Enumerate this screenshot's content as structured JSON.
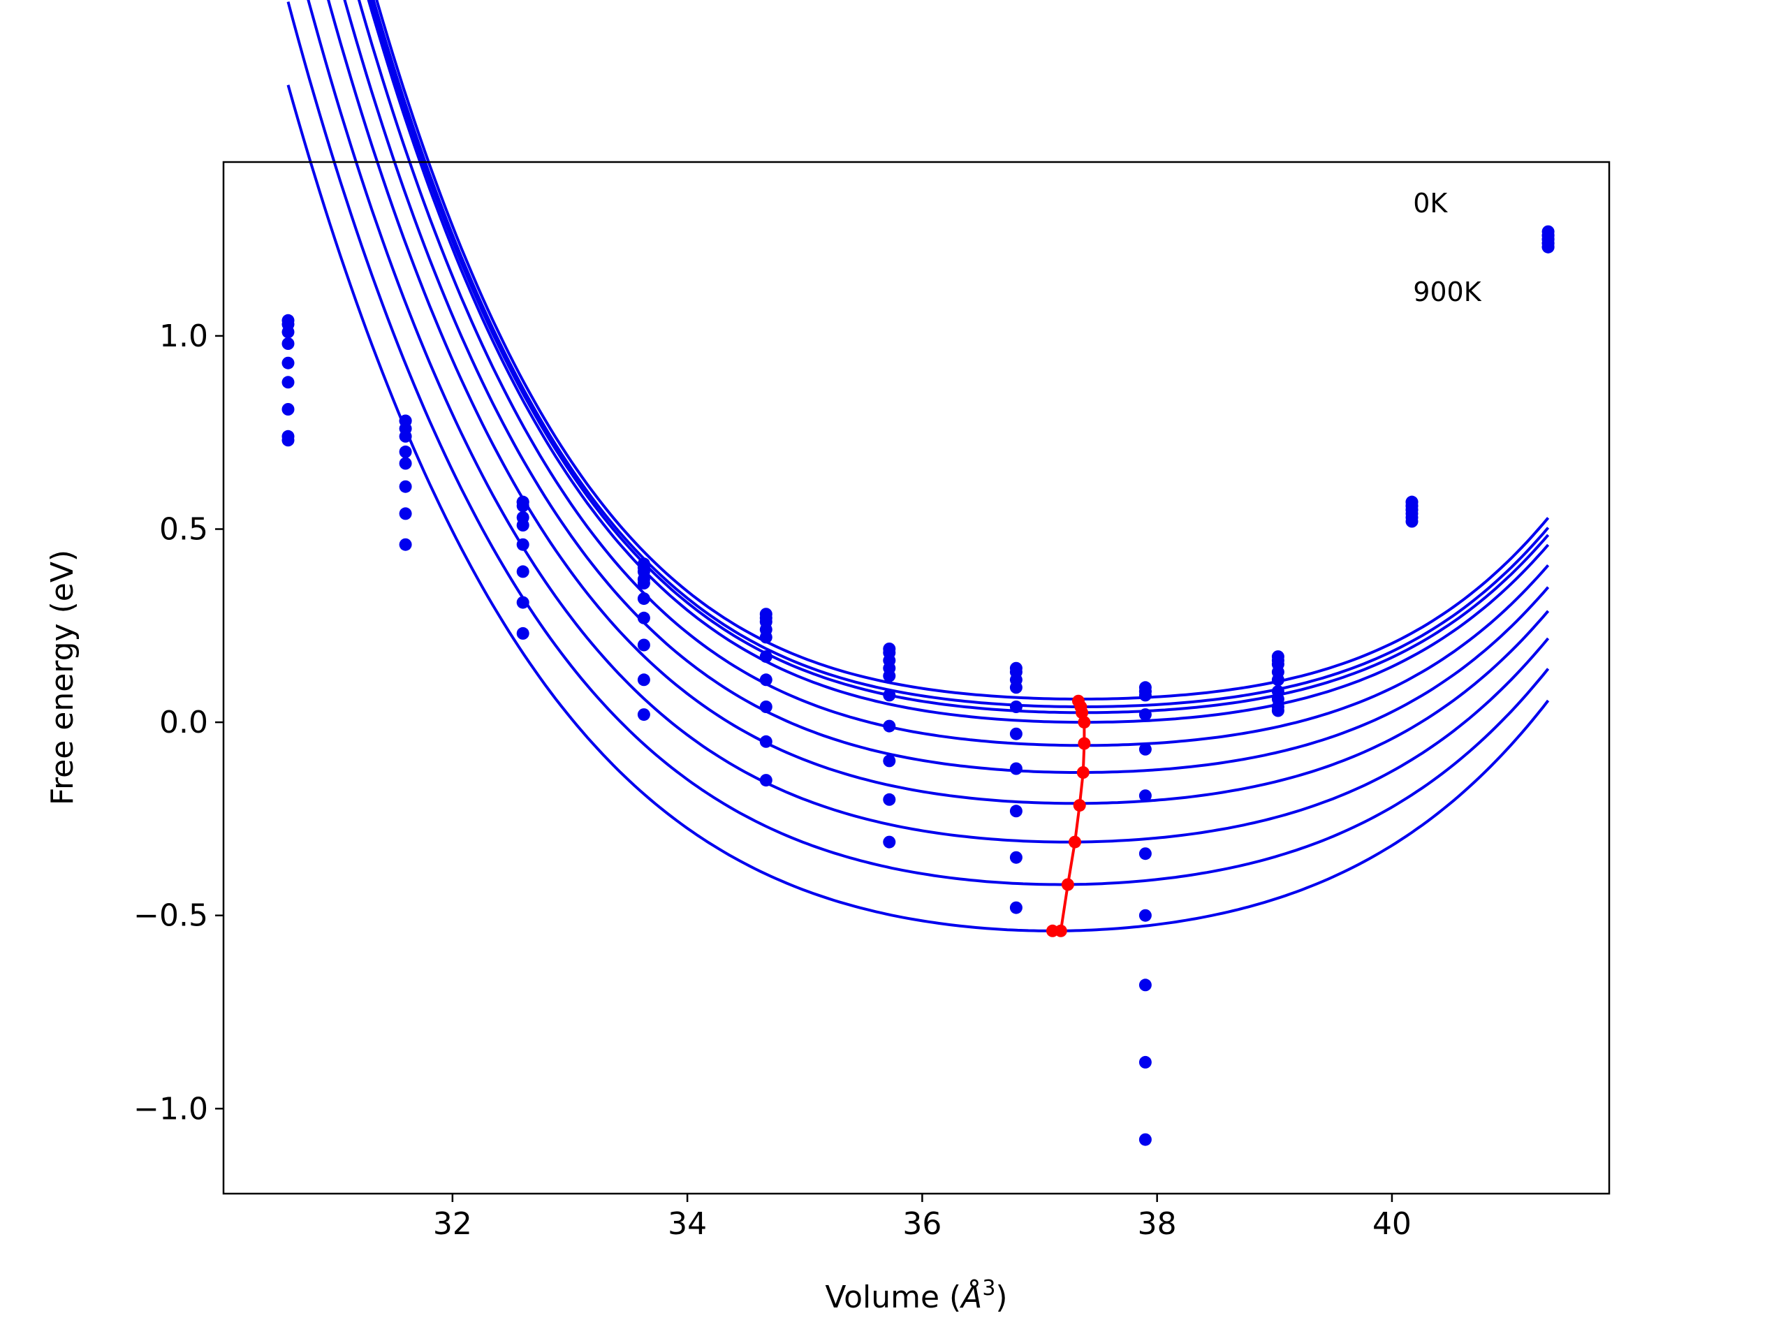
{
  "chart_data": {
    "type": "line",
    "xlabel_prefix": "Volume (",
    "xlabel_symbol": "Å",
    "xlabel_exponent": "3",
    "xlabel_suffix": ")",
    "ylabel": "Free energy (eV)",
    "xlim": [
      30.05,
      41.85
    ],
    "ylim": [
      -1.22,
      1.45
    ],
    "x_ticks": [
      32,
      34,
      36,
      38,
      40
    ],
    "x_tick_labels": [
      "32",
      "34",
      "36",
      "38",
      "40"
    ],
    "y_ticks": [
      -1.0,
      -0.5,
      0.0,
      0.5,
      1.0
    ],
    "y_tick_labels": [
      "−1.0",
      "−0.5",
      "0.0",
      "0.5",
      "1.0"
    ],
    "annotations": [
      {
        "text": "0K",
        "x": 40.18,
        "y": 1.32
      },
      {
        "text": "900K",
        "x": 40.18,
        "y": 1.09
      }
    ],
    "colors": {
      "fits": "#0000ee",
      "points": "#0000ee",
      "minimum_line": "#ff0000"
    },
    "sample_volumes": [
      30.6,
      31.6,
      32.6,
      33.63,
      34.67,
      35.72,
      36.8,
      37.9,
      39.03,
      40.17,
      41.33
    ],
    "series": [
      {
        "values": [
          1.04,
          0.78,
          0.57,
          0.41,
          0.28,
          0.19,
          0.14,
          0.09,
          0.17,
          0.57,
          1.27
        ],
        "fit": {
          "v0": 37.35,
          "e0": 0.06,
          "a": 0.0133,
          "b": 0.00103
        }
      },
      {
        "values": [
          1.03,
          0.78,
          0.57,
          0.4,
          0.27,
          0.18,
          0.13,
          0.08,
          0.16,
          0.57,
          1.26
        ],
        "fit": {
          "v0": 37.36,
          "e0": 0.04,
          "a": 0.0135,
          "b": 0.00101
        }
      },
      {
        "values": [
          1.01,
          0.76,
          0.56,
          0.39,
          0.26,
          0.16,
          0.11,
          0.08,
          0.15,
          0.56,
          1.26
        ],
        "fit": {
          "v0": 37.37,
          "e0": 0.025,
          "a": 0.0138,
          "b": 0.00099
        }
      },
      {
        "values": [
          0.98,
          0.74,
          0.53,
          0.37,
          0.24,
          0.14,
          0.09,
          0.07,
          0.13,
          0.56,
          1.25
        ],
        "fit": {
          "v0": 37.38,
          "e0": 0.0,
          "a": 0.0143,
          "b": 0.00097
        }
      },
      {
        "values": [
          0.93,
          0.7,
          0.51,
          0.36,
          0.22,
          0.12,
          0.04,
          0.02,
          0.11,
          0.55,
          1.25
        ],
        "fit": {
          "v0": 37.37,
          "e0": -0.06,
          "a": 0.015,
          "b": 0.00094
        }
      },
      {
        "values": [
          0.88,
          0.67,
          0.46,
          0.32,
          0.17,
          0.07,
          -0.03,
          -0.07,
          0.08,
          0.55,
          1.24
        ],
        "fit": {
          "v0": 37.34,
          "e0": -0.13,
          "a": 0.0158,
          "b": 0.0009
        }
      },
      {
        "values": [
          0.81,
          0.61,
          0.39,
          0.27,
          0.11,
          -0.01,
          -0.12,
          -0.19,
          0.06,
          0.54,
          1.24
        ],
        "fit": {
          "v0": 37.3,
          "e0": -0.21,
          "a": 0.0167,
          "b": 0.00086
        }
      },
      {
        "values": [
          0.74,
          0.54,
          0.31,
          0.2,
          0.04,
          -0.1,
          -0.23,
          -0.34,
          0.04,
          0.53,
          1.23
        ],
        "fit": {
          "v0": 37.24,
          "e0": -0.31,
          "a": 0.0178,
          "b": 0.00082
        }
      },
      {
        "values": [
          0.73,
          0.46,
          0.23,
          0.11,
          -0.05,
          -0.2,
          -0.35,
          -0.5,
          0.03,
          0.52,
          1.23
        ],
        "fit": {
          "v0": 37.18,
          "e0": -0.42,
          "a": 0.019,
          "b": 0.00078
        }
      },
      {
        "values": [
          null,
          null,
          null,
          0.02,
          -0.15,
          -0.31,
          -0.48,
          -0.68,
          null,
          null,
          null
        ],
        "fit": {
          "v0": 37.11,
          "e0": -0.54,
          "a": 0.0203,
          "b": 0.00074
        }
      },
      {
        "values": [
          null,
          null,
          null,
          null,
          null,
          null,
          null,
          -0.88,
          null,
          null,
          null
        ]
      },
      {
        "values": [
          null,
          null,
          null,
          null,
          null,
          null,
          null,
          -1.08,
          null,
          null,
          null
        ]
      }
    ],
    "minimum_line": {
      "x": [
        37.33,
        37.35,
        37.36,
        37.38,
        37.38,
        37.37,
        37.34,
        37.3,
        37.24,
        37.18,
        37.11
      ],
      "y": [
        0.055,
        0.04,
        0.025,
        0.0,
        -0.055,
        -0.13,
        -0.215,
        -0.31,
        -0.42,
        -0.54,
        -0.54
      ]
    }
  }
}
